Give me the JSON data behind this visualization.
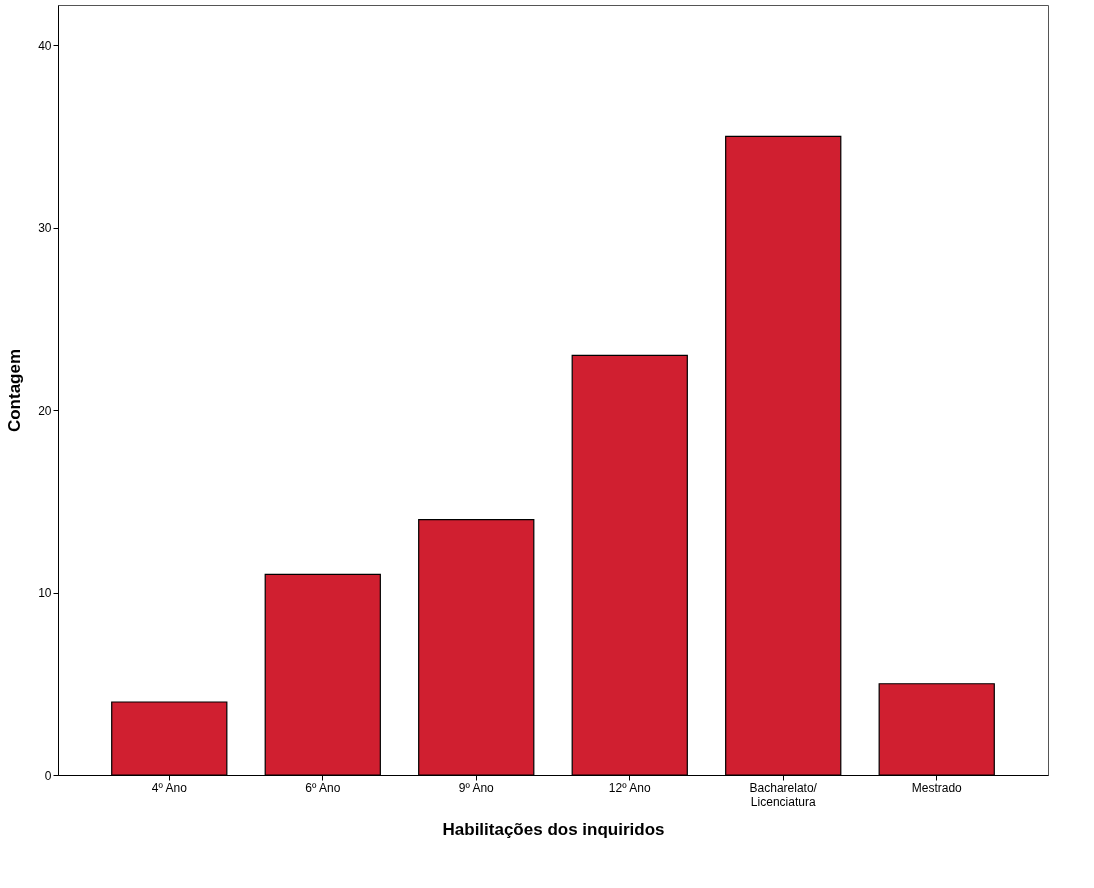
{
  "chart_data": {
    "type": "bar",
    "xlabel": "Habilitações dos inquiridos",
    "ylabel": "Contagem",
    "categories": [
      "4º Ano",
      "6º Ano",
      "9º Ano",
      "12º Ano",
      "Bacharelato/\nLicenciatura",
      "Mestrado"
    ],
    "values": [
      4,
      11,
      14,
      23,
      35,
      5
    ],
    "color": "#d01f30",
    "ylim": [
      0,
      42.2
    ],
    "yticks": [
      0,
      10,
      20,
      30,
      40
    ],
    "grid": false
  }
}
